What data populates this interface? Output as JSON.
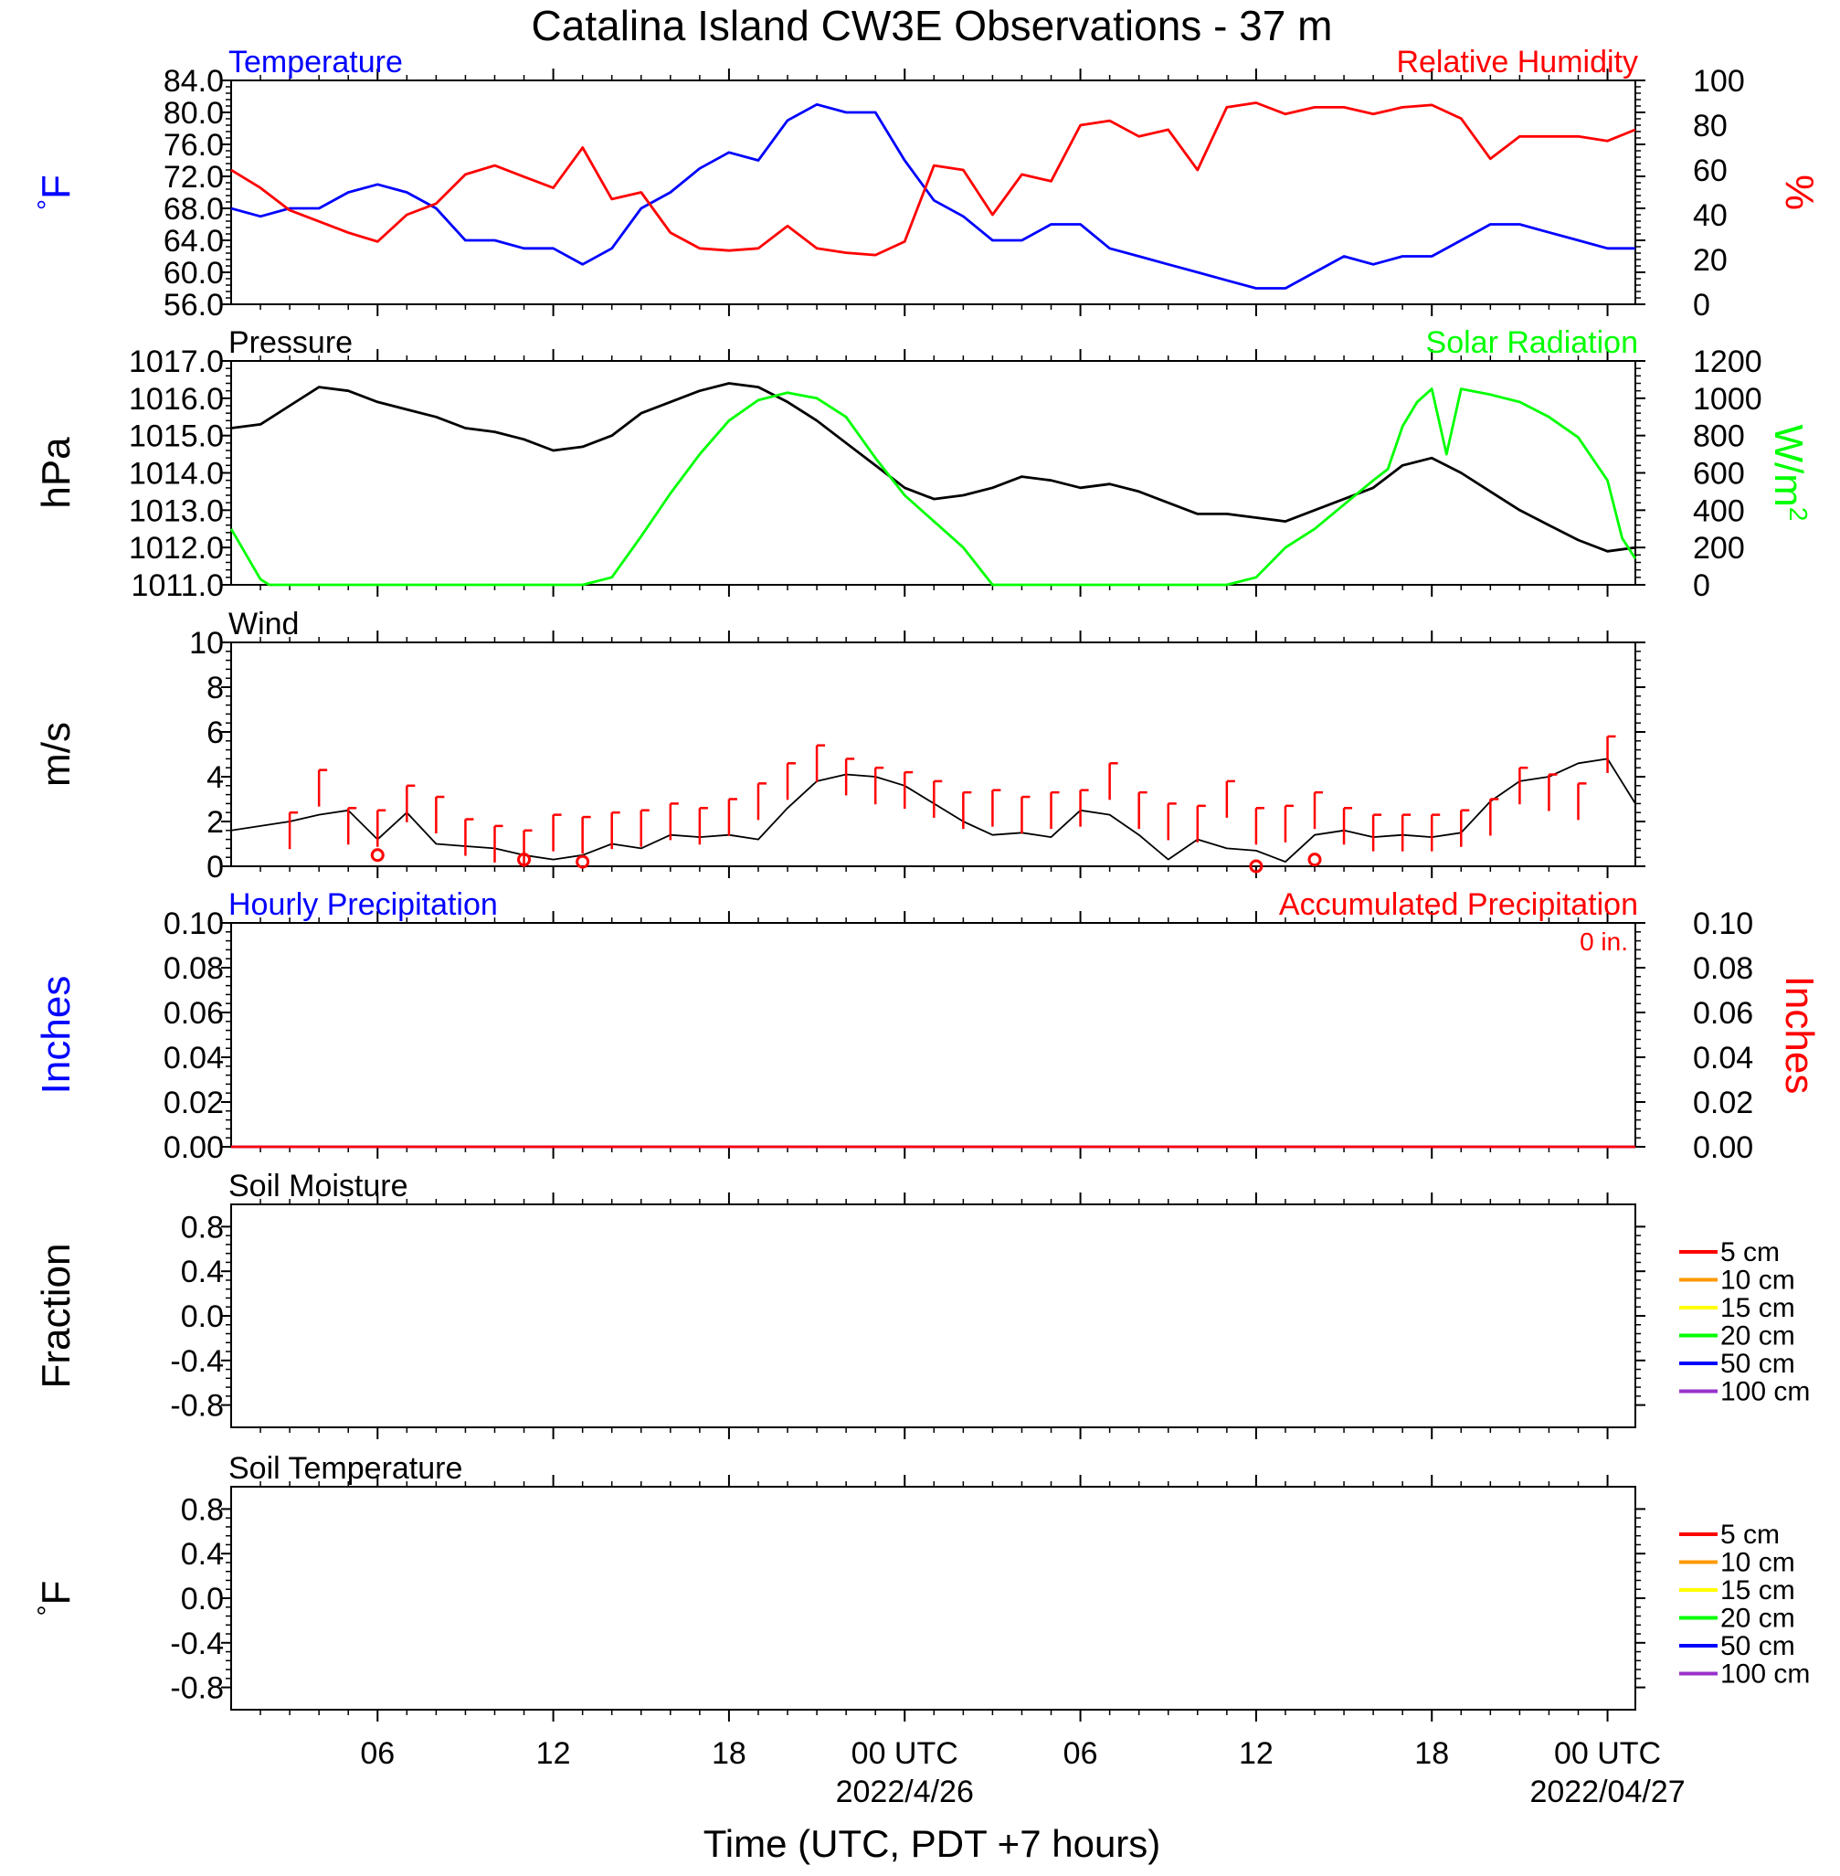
{
  "title": "Catalina Island CW3E Observations - 37 m",
  "colors": {
    "temperature": "#0000ff",
    "humidity": "#ff0000",
    "pressure": "#000000",
    "solar": "#00ff00",
    "wind": "#000000",
    "barb": "#ff0000",
    "hourly_precip": "#0000ff",
    "accum_precip": "#ff0000"
  },
  "x_axis": {
    "label": "Time (UTC, PDT +7 hours)",
    "range_hours": [
      1,
      48.95
    ],
    "ticks": [
      {
        "h": 6,
        "label": "06",
        "date": ""
      },
      {
        "h": 12,
        "label": "12",
        "date": ""
      },
      {
        "h": 18,
        "label": "18",
        "date": ""
      },
      {
        "h": 24,
        "label": "00 UTC",
        "date": "2022/4/26"
      },
      {
        "h": 30,
        "label": "06",
        "date": ""
      },
      {
        "h": 36,
        "label": "12",
        "date": ""
      },
      {
        "h": 42,
        "label": "18",
        "date": ""
      },
      {
        "h": 48,
        "label": "00 UTC",
        "date": "2022/04/27"
      }
    ]
  },
  "chart_data": [
    {
      "type": "line",
      "id": "temp_rh",
      "left_title": "Temperature",
      "right_title": "Relative Humidity",
      "ylabel_left": "°F",
      "ylabel_right": "%",
      "ylim_left": [
        56,
        84
      ],
      "yticks_left": [
        "56.0",
        "60.0",
        "64.0",
        "68.0",
        "72.0",
        "76.0",
        "80.0",
        "84.0"
      ],
      "ylim_right": [
        0,
        100
      ],
      "yticks_right": [
        "0",
        "20",
        "40",
        "60",
        "80",
        "100"
      ],
      "series": [
        {
          "name": "Temperature",
          "axis": "left",
          "color": "#0000ff",
          "x": [
            1,
            2,
            3,
            4,
            5,
            6,
            7,
            8,
            9,
            10,
            11,
            12,
            13,
            14,
            15,
            16,
            17,
            18,
            19,
            20,
            21,
            22,
            23,
            24,
            25,
            26,
            27,
            28,
            29,
            30,
            31,
            32,
            33,
            34,
            35,
            36,
            37,
            38,
            39,
            40,
            41,
            42,
            43,
            44,
            45,
            46,
            47,
            48,
            48.95
          ],
          "y": [
            68,
            67,
            68,
            68,
            70,
            71,
            70,
            68,
            64,
            64,
            63,
            63,
            61,
            63,
            68,
            70,
            73,
            75,
            74,
            79,
            81,
            80,
            80,
            74,
            69,
            67,
            64,
            64,
            66,
            66,
            63,
            62,
            61,
            60,
            59,
            58,
            58,
            60,
            62,
            61,
            62,
            62,
            64,
            66,
            66,
            65,
            64,
            63,
            63
          ]
        },
        {
          "name": "Relative Humidity",
          "axis": "right",
          "color": "#ff0000",
          "x": [
            1,
            2,
            3,
            4,
            5,
            6,
            7,
            8,
            9,
            10,
            11,
            12,
            13,
            14,
            15,
            16,
            17,
            18,
            19,
            20,
            21,
            22,
            23,
            24,
            25,
            26,
            27,
            28,
            29,
            30,
            31,
            32,
            33,
            34,
            35,
            36,
            37,
            38,
            39,
            40,
            41,
            42,
            43,
            44,
            45,
            46,
            47,
            48,
            48.95
          ],
          "y": [
            60,
            52,
            42,
            37,
            32,
            28,
            40,
            45,
            58,
            62,
            57,
            52,
            70,
            47,
            50,
            32,
            25,
            24,
            25,
            35,
            25,
            23,
            22,
            28,
            62,
            60,
            40,
            58,
            55,
            80,
            82,
            75,
            78,
            60,
            88,
            90,
            85,
            88,
            88,
            85,
            88,
            89,
            83,
            65,
            75,
            75,
            75,
            73,
            78
          ]
        }
      ]
    },
    {
      "type": "line",
      "id": "pressure_solar",
      "left_title": "Pressure",
      "right_title": "Solar Radiation",
      "ylabel_left": "hPa",
      "ylabel_right": "W/m2",
      "ylim_left": [
        1011,
        1017
      ],
      "yticks_left": [
        "1011.0",
        "1012.0",
        "1013.0",
        "1014.0",
        "1015.0",
        "1016.0",
        "1017.0"
      ],
      "ylim_right": [
        0,
        1200
      ],
      "yticks_right": [
        "0",
        "200",
        "400",
        "600",
        "800",
        "1000",
        "1200"
      ],
      "series": [
        {
          "name": "Pressure",
          "axis": "left",
          "color": "#000000",
          "x": [
            1,
            2,
            3,
            4,
            5,
            6,
            7,
            8,
            9,
            10,
            11,
            12,
            13,
            14,
            15,
            16,
            17,
            18,
            19,
            20,
            21,
            22,
            23,
            24,
            25,
            26,
            27,
            28,
            29,
            30,
            31,
            32,
            33,
            34,
            35,
            36,
            37,
            38,
            39,
            40,
            41,
            42,
            43,
            44,
            45,
            46,
            47,
            48,
            48.95
          ],
          "y": [
            1015.2,
            1015.3,
            1015.8,
            1016.3,
            1016.2,
            1015.9,
            1015.7,
            1015.5,
            1015.2,
            1015.1,
            1014.9,
            1014.6,
            1014.7,
            1015.0,
            1015.6,
            1015.9,
            1016.2,
            1016.4,
            1016.3,
            1015.9,
            1015.4,
            1014.8,
            1014.2,
            1013.6,
            1013.3,
            1013.4,
            1013.6,
            1013.9,
            1013.8,
            1013.6,
            1013.7,
            1013.5,
            1013.2,
            1012.9,
            1012.9,
            1012.8,
            1012.7,
            1013.0,
            1013.3,
            1013.6,
            1014.2,
            1014.4,
            1014.0,
            1013.5,
            1013.0,
            1012.6,
            1012.2,
            1011.9,
            1012.0
          ]
        },
        {
          "name": "Solar Radiation",
          "axis": "right",
          "color": "#00ff00",
          "x": [
            1,
            2,
            2.3,
            13,
            14,
            15,
            16,
            17,
            18,
            19,
            20,
            21,
            22,
            23,
            23.5,
            24,
            25,
            26,
            27,
            35,
            36,
            37,
            38,
            39,
            40,
            40.5,
            41,
            41.5,
            42,
            42.5,
            43,
            44,
            45,
            46,
            47,
            48,
            48.5,
            48.95
          ],
          "y": [
            300,
            30,
            0,
            0,
            40,
            260,
            490,
            700,
            880,
            990,
            1030,
            1000,
            900,
            680,
            580,
            480,
            340,
            200,
            0,
            0,
            40,
            200,
            300,
            430,
            560,
            620,
            850,
            980,
            1050,
            700,
            1050,
            1020,
            980,
            900,
            790,
            560,
            250,
            140
          ]
        }
      ]
    },
    {
      "type": "line",
      "id": "wind",
      "left_title": "Wind",
      "ylabel_left": "m/s",
      "ylim_left": [
        0,
        10
      ],
      "yticks_left": [
        "0",
        "2",
        "4",
        "6",
        "8",
        "10"
      ],
      "series": [
        {
          "name": "Wind",
          "axis": "left",
          "color": "#000000",
          "x": [
            1,
            2,
            3,
            4,
            5,
            6,
            7,
            8,
            9,
            10,
            11,
            12,
            13,
            14,
            15,
            16,
            17,
            18,
            19,
            20,
            21,
            22,
            23,
            24,
            25,
            26,
            27,
            28,
            29,
            30,
            31,
            32,
            33,
            34,
            35,
            36,
            37,
            38,
            39,
            40,
            41,
            42,
            43,
            44,
            45,
            46,
            47,
            48,
            48.95
          ],
          "y": [
            1.6,
            1.8,
            2.0,
            2.3,
            2.5,
            1.2,
            2.4,
            1.0,
            0.9,
            0.8,
            0.5,
            0.3,
            0.5,
            1.0,
            0.8,
            1.4,
            1.3,
            1.4,
            1.2,
            2.6,
            3.8,
            4.1,
            4.0,
            3.6,
            2.8,
            2.0,
            1.4,
            1.5,
            1.3,
            2.5,
            2.3,
            1.4,
            0.3,
            1.2,
            0.8,
            0.7,
            0.2,
            1.4,
            1.6,
            1.3,
            1.4,
            1.3,
            1.5,
            2.9,
            3.8,
            4.0,
            4.6,
            4.8,
            2.8
          ]
        },
        {
          "name": "Wind barbs",
          "axis": "left",
          "color": "#ff0000",
          "x": [
            3,
            4,
            5,
            6,
            7,
            8,
            9,
            10,
            11,
            12,
            13,
            14,
            15,
            16,
            17,
            18,
            19,
            20,
            21,
            22,
            23,
            24,
            25,
            26,
            27,
            28,
            29,
            30,
            31,
            32,
            33,
            34,
            35,
            36,
            37,
            38,
            39,
            40,
            41,
            42,
            43,
            44,
            45,
            46,
            47,
            48
          ],
          "y": [
            2.4,
            4.3,
            2.6,
            2.5,
            3.6,
            3.1,
            2.1,
            1.8,
            1.6,
            2.3,
            2.2,
            2.4,
            2.5,
            2.8,
            2.6,
            3.0,
            3.7,
            4.6,
            5.4,
            4.8,
            4.4,
            4.2,
            3.8,
            3.3,
            3.4,
            3.1,
            3.3,
            3.4,
            4.6,
            3.3,
            2.8,
            2.7,
            3.8,
            2.6,
            2.7,
            3.3,
            2.6,
            2.3,
            2.3,
            2.3,
            2.5,
            3.0,
            4.4,
            4.1,
            3.7,
            5.8
          ]
        },
        {
          "name": "Calm",
          "axis": "left",
          "color": "#ff0000",
          "x": [
            6,
            11,
            13,
            36,
            38
          ],
          "y": [
            0.5,
            0.3,
            0.2,
            0.0,
            0.3
          ]
        }
      ]
    },
    {
      "type": "line",
      "id": "precip",
      "left_title": "Hourly Precipitation",
      "right_title": "Accumulated Precipitation",
      "annotation": "0 in.",
      "ylabel_left": "Inches",
      "ylabel_right": "Inches",
      "ylim_left": [
        0,
        0.1
      ],
      "yticks_left": [
        "0.00",
        "0.02",
        "0.04",
        "0.06",
        "0.08",
        "0.10"
      ],
      "ylim_right": [
        0,
        0.1
      ],
      "yticks_right": [
        "0.00",
        "0.02",
        "0.04",
        "0.06",
        "0.08",
        "0.10"
      ],
      "series": [
        {
          "name": "Hourly Precipitation",
          "axis": "left",
          "color": "#0000ff",
          "x": [
            1,
            48.95
          ],
          "y": [
            0,
            0
          ]
        },
        {
          "name": "Accumulated Precipitation",
          "axis": "right",
          "color": "#ff0000",
          "x": [
            1,
            48.95
          ],
          "y": [
            0,
            0
          ]
        }
      ]
    },
    {
      "type": "line",
      "id": "soil_moisture",
      "left_title": "Soil Moisture",
      "ylabel_left": "Fraction",
      "ylim_left": [
        -1,
        1
      ],
      "yticks_left": [
        "-0.8",
        "-0.4",
        "0.0",
        "0.4",
        "0.8"
      ],
      "legend": [
        {
          "label": "5 cm",
          "color": "#ff0000"
        },
        {
          "label": "10 cm",
          "color": "#ff9900"
        },
        {
          "label": "15 cm",
          "color": "#ffff00"
        },
        {
          "label": "20 cm",
          "color": "#00ff00"
        },
        {
          "label": "50 cm",
          "color": "#0000ff"
        },
        {
          "label": "100 cm",
          "color": "#9932cc"
        }
      ],
      "series": []
    },
    {
      "type": "line",
      "id": "soil_temperature",
      "left_title": "Soil Temperature",
      "ylabel_left": "°F",
      "ylim_left": [
        -1,
        1
      ],
      "yticks_left": [
        "-0.8",
        "-0.4",
        "0.0",
        "0.4",
        "0.8"
      ],
      "legend": [
        {
          "label": "5 cm",
          "color": "#ff0000"
        },
        {
          "label": "10 cm",
          "color": "#ff9900"
        },
        {
          "label": "15 cm",
          "color": "#ffff00"
        },
        {
          "label": "20 cm",
          "color": "#00ff00"
        },
        {
          "label": "50 cm",
          "color": "#0000ff"
        },
        {
          "label": "100 cm",
          "color": "#9932cc"
        }
      ],
      "series": []
    }
  ]
}
